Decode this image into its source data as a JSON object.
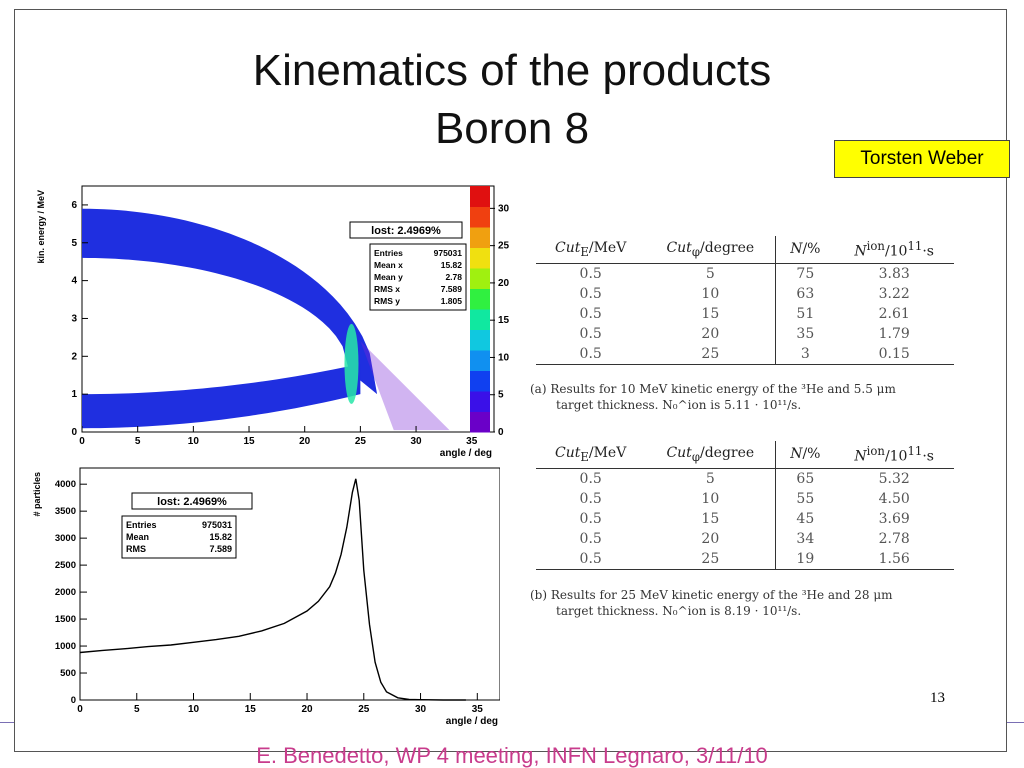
{
  "slide": {
    "title_line1": "Kinematics of the products",
    "title_line2": "Boron 8",
    "author_badge": "Torsten Weber",
    "page_number": "13",
    "footer_text": "E. Benedetto, WP 4 meeting, INFN Legnaro, 3/11/10"
  },
  "table_a": {
    "headers": [
      "Cut_E/MeV",
      "Cut_φ/degree",
      "N/%",
      "N^ion/10^11·s"
    ],
    "rows": [
      [
        "0.5",
        "5",
        "75",
        "3.83"
      ],
      [
        "0.5",
        "10",
        "63",
        "3.22"
      ],
      [
        "0.5",
        "15",
        "51",
        "2.61"
      ],
      [
        "0.5",
        "20",
        "35",
        "1.79"
      ],
      [
        "0.5",
        "25",
        "3",
        "0.15"
      ]
    ],
    "caption_line1": "(a) Results for 10 MeV kinetic energy of the ³He and 5.5 μm",
    "caption_line2": "target thickness. N₀^ion is 5.11 · 10¹¹/s."
  },
  "table_b": {
    "headers": [
      "Cut_E/MeV",
      "Cut_φ/degree",
      "N/%",
      "N^ion/10^11·s"
    ],
    "rows": [
      [
        "0.5",
        "5",
        "65",
        "5.32"
      ],
      [
        "0.5",
        "10",
        "55",
        "4.50"
      ],
      [
        "0.5",
        "15",
        "45",
        "3.69"
      ],
      [
        "0.5",
        "20",
        "34",
        "2.78"
      ],
      [
        "0.5",
        "25",
        "19",
        "1.56"
      ]
    ],
    "caption_line1": "(b) Results for 25 MeV kinetic energy of the ³He and 28 μm",
    "caption_line2": "target thickness. N₀^ion is 8.19 · 10¹¹/s."
  },
  "chart_data": [
    {
      "type": "heatmap",
      "title": "",
      "xlabel": "angle / deg",
      "ylabel": "kin. energy / MeV",
      "xlim": [
        0,
        37
      ],
      "ylim": [
        0,
        6.5
      ],
      "xticks": [
        "0",
        "5",
        "10",
        "15",
        "20",
        "25",
        "30",
        "35"
      ],
      "yticks": [
        "0",
        "1",
        "2",
        "3",
        "4",
        "5",
        "6"
      ],
      "colorbar_ticks": [
        "0",
        "5",
        "10",
        "15",
        "20",
        "25",
        "30"
      ],
      "colorbar_range": [
        0,
        33
      ],
      "lost_label": "lost: 2.4969%",
      "stats": [
        {
          "label": "Entries",
          "value": "975031"
        },
        {
          "label": "Mean x",
          "value": "15.82"
        },
        {
          "label": "Mean y",
          "value": "2.78"
        },
        {
          "label": "RMS x",
          "value": "7.589"
        },
        {
          "label": "RMS y",
          "value": "1.805"
        }
      ],
      "bands": {
        "upper_outer_y0": 5.9,
        "upper_inner_y0": 4.6,
        "lower_outer_y0": 1.0,
        "lower_inner_y0": 0.1,
        "merge_angle": 25
      },
      "colors": {
        "main": "#1f2fe0",
        "hot": "#27e6a8",
        "edge": "#7a28d8"
      }
    },
    {
      "type": "line",
      "title": "",
      "xlabel": "angle / deg",
      "ylabel": "# particles",
      "xlim": [
        0,
        37
      ],
      "ylim": [
        0,
        4300
      ],
      "xticks": [
        "0",
        "5",
        "10",
        "15",
        "20",
        "25",
        "30",
        "35"
      ],
      "yticks": [
        "0",
        "500",
        "1000",
        "1500",
        "2000",
        "2500",
        "3000",
        "3500",
        "4000"
      ],
      "lost_label": "lost: 2.4969%",
      "stats": [
        {
          "label": "Entries",
          "value": "975031"
        },
        {
          "label": "Mean",
          "value": "15.82"
        },
        {
          "label": "RMS",
          "value": "7.589"
        }
      ],
      "series": [
        {
          "x": [
            0,
            2,
            4,
            6,
            8,
            10,
            12,
            14,
            16,
            18,
            20,
            21,
            22,
            22.5,
            23,
            23.5,
            24,
            24.3,
            24.6,
            25,
            25.5,
            26,
            26.5,
            27,
            28,
            29,
            30,
            32,
            34
          ],
          "values": [
            880,
            920,
            950,
            990,
            1020,
            1070,
            1120,
            1180,
            1280,
            1420,
            1650,
            1830,
            2100,
            2350,
            2700,
            3200,
            3850,
            4100,
            3700,
            2400,
            1400,
            700,
            330,
            150,
            40,
            12,
            5,
            0,
            0
          ]
        }
      ]
    }
  ]
}
